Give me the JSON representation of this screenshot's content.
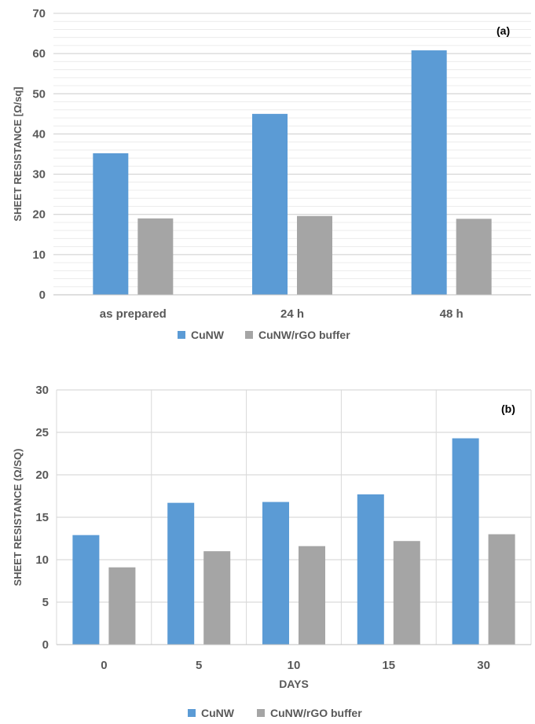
{
  "chart_data": [
    {
      "type": "bar",
      "panel_label": "(a)",
      "title": "",
      "xlabel": "",
      "ylabel": "SHEET RESISTANCE [Ω/sq]",
      "categories": [
        "as prepared",
        "24 h",
        "48 h"
      ],
      "series": [
        {
          "name": "CuNW",
          "color": "#5b9bd5",
          "values": [
            35.2,
            45.0,
            60.8
          ]
        },
        {
          "name": "CuNW/rGO buffer",
          "color": "#a5a5a5",
          "values": [
            19.0,
            19.6,
            18.9
          ]
        }
      ],
      "ylim": [
        0,
        70
      ],
      "yticks": [
        0,
        10,
        20,
        30,
        40,
        50,
        60,
        70
      ],
      "grid": {
        "major": true,
        "minor": true
      },
      "legend": "bottom"
    },
    {
      "type": "bar",
      "panel_label": "(b)",
      "title": "",
      "xlabel": "DAYS",
      "ylabel": "SHEET RESISTANCE (Ω/SQ)",
      "categories": [
        "0",
        "5",
        "10",
        "15",
        "30"
      ],
      "series": [
        {
          "name": "CuNW",
          "color": "#5b9bd5",
          "values": [
            12.9,
            16.7,
            16.8,
            17.7,
            24.3
          ]
        },
        {
          "name": "CuNW/rGO buffer",
          "color": "#a5a5a5",
          "values": [
            9.1,
            11.0,
            11.6,
            12.2,
            13.0
          ]
        }
      ],
      "ylim": [
        0,
        30
      ],
      "yticks": [
        0,
        5,
        10,
        15,
        20,
        25,
        30
      ],
      "grid": {
        "major": true,
        "minor": false,
        "vertical": true
      },
      "legend": "bottom"
    }
  ]
}
